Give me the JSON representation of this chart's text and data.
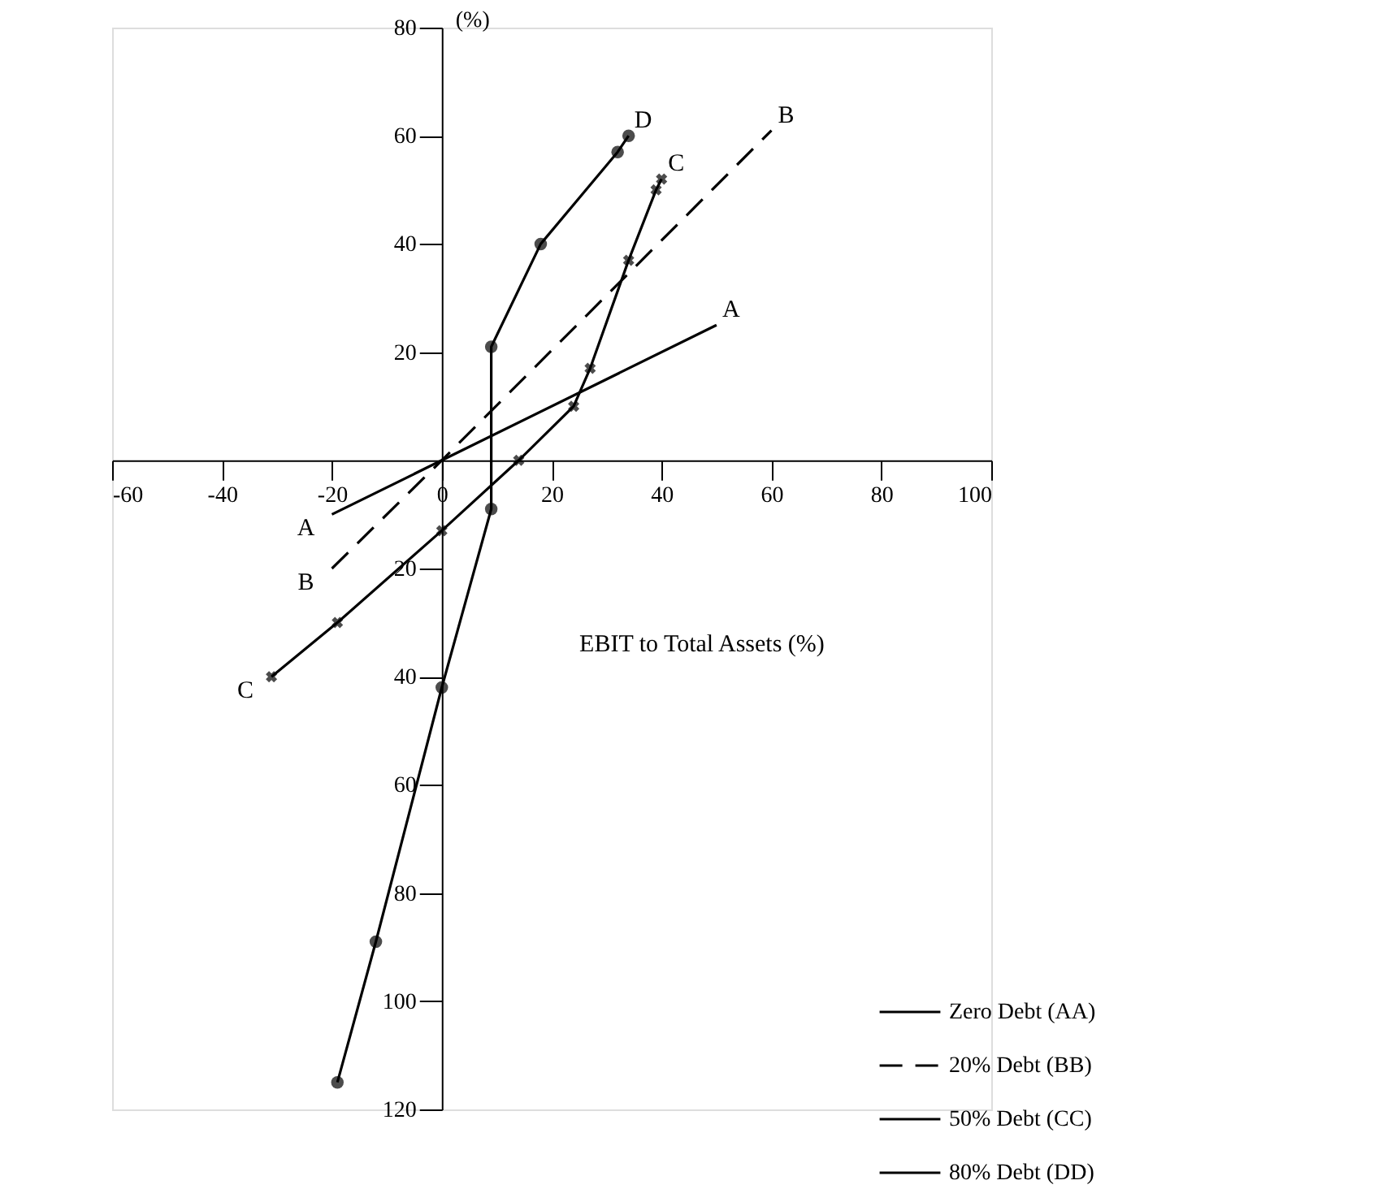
{
  "chart_data": {
    "type": "line",
    "xlabel": "EBIT to Total Assets (%)",
    "ylabel": "(%)",
    "xlim": [
      -60,
      100
    ],
    "ylim": [
      -120,
      80
    ],
    "xticks": [
      -60,
      -40,
      {
        "value": -20,
        "label": "-20"
      },
      {
        "value": 0,
        "label": "0"
      },
      20,
      40,
      60,
      80,
      100
    ],
    "yticks": [
      80,
      60,
      40,
      20,
      {
        "value": -20,
        "label": "20"
      },
      {
        "value": -40,
        "label": "40"
      },
      {
        "value": -60,
        "label": "60"
      },
      {
        "value": -80,
        "label": "80"
      },
      {
        "value": -100,
        "label": "100"
      },
      {
        "value": -120,
        "label": "120"
      }
    ],
    "grid": false,
    "legend": "bottom right",
    "series": [
      {
        "name": "Zero Debt (AA)",
        "color": "#000000",
        "line_style": "solid",
        "marker": "none",
        "x": [
          -20,
          0,
          50
        ],
        "values": [
          -10,
          0,
          25
        ]
      },
      {
        "name": "20% Debt (BB)",
        "color": "#000000",
        "line_style": "dashed",
        "marker": "none",
        "x": [
          -20,
          0,
          60
        ],
        "values": [
          -20,
          0,
          61
        ]
      },
      {
        "name": "50% Debt (CC)",
        "color": "#000000",
        "line_style": "solid",
        "marker": "cross",
        "x": [
          -31,
          -19,
          0,
          14,
          24,
          27,
          34,
          39,
          40
        ],
        "values": [
          -40,
          -30,
          -13,
          0,
          10,
          17,
          37,
          50,
          52
        ]
      },
      {
        "name": "80% Debt (DD)",
        "color": "#000000",
        "line_style": "solid",
        "marker": "circle",
        "x": [
          -19,
          -12,
          0,
          9,
          9,
          18,
          32,
          34
        ],
        "values": [
          -115,
          -89,
          -42,
          -9,
          21,
          40,
          57,
          60
        ]
      }
    ],
    "annotations": [
      {
        "text": "A",
        "x": -20,
        "y": -10
      },
      {
        "text": "B",
        "x": -20,
        "y": -20
      },
      {
        "text": "C",
        "x": -31,
        "y": -40
      },
      {
        "text": "D",
        "x": 34,
        "y": 60
      },
      {
        "text": "C",
        "x": 40,
        "y": 52
      },
      {
        "text": "B",
        "x": 60,
        "y": 61
      },
      {
        "text": "A",
        "x": 50,
        "y": 25
      }
    ]
  }
}
